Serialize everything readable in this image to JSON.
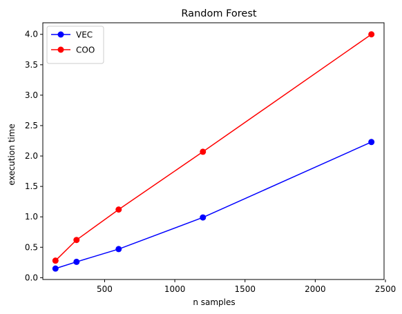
{
  "chart_data": {
    "type": "line",
    "title": "Random Forest",
    "xlabel": "n samples",
    "ylabel": "execution time",
    "x": [
      150,
      300,
      600,
      1200,
      2400
    ],
    "xlim": [
      60,
      2490
    ],
    "ylim": [
      -0.03,
      4.19
    ],
    "xticks": [
      500,
      1000,
      1500,
      2000,
      2500
    ],
    "xtick_labels": [
      "500",
      "1000",
      "1500",
      "2000",
      "2500"
    ],
    "yticks": [
      0.0,
      0.5,
      1.0,
      1.5,
      2.0,
      2.5,
      3.0,
      3.5,
      4.0
    ],
    "ytick_labels": [
      "0.0",
      "0.5",
      "1.0",
      "1.5",
      "2.0",
      "2.5",
      "3.0",
      "3.5",
      "4.0"
    ],
    "grid": false,
    "legend_position": "top-left",
    "series": [
      {
        "name": "VEC",
        "color": "#0000ff",
        "marker": "circle",
        "values": [
          0.15,
          0.26,
          0.47,
          0.99,
          2.23
        ]
      },
      {
        "name": "COO",
        "color": "#ff0000",
        "marker": "circle",
        "values": [
          0.28,
          0.62,
          1.12,
          2.07,
          4.0
        ]
      }
    ]
  }
}
